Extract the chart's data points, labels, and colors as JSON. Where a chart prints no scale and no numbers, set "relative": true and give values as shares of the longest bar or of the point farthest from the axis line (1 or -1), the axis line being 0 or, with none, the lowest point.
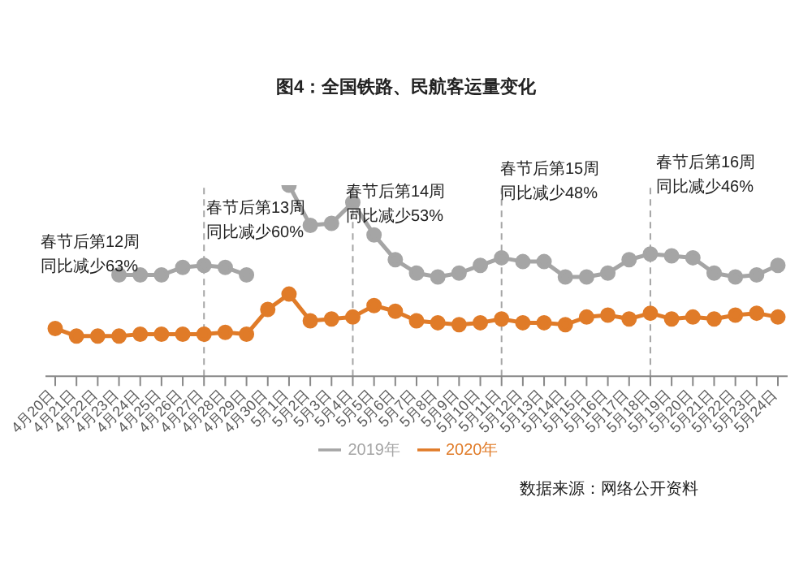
{
  "chart_data": {
    "type": "line",
    "title": "图4：全国铁路、民航客运量变化",
    "relative": true,
    "marker": "circle",
    "line_style": "solid",
    "legend": "bottom",
    "grid": false,
    "categories": [
      "4月20日",
      "4月21日",
      "4月22日",
      "4月23日",
      "4月24日",
      "4月25日",
      "4月26日",
      "4月27日",
      "4月28日",
      "4月29日",
      "4月30日",
      "5月1日",
      "5月2日",
      "5月3日",
      "5月4日",
      "5月5日",
      "5月6日",
      "5月7日",
      "5月8日",
      "5月9日",
      "5月10日",
      "5月11日",
      "5月12日",
      "5月13日",
      "5月14日",
      "5月15日",
      "5月16日",
      "5月17日",
      "5月18日",
      "5月19日",
      "5月20日",
      "5月21日",
      "5月22日",
      "5月23日",
      "5月24日"
    ],
    "series": [
      {
        "name": "2020年",
        "color": "#e07b28",
        "values": [
          0.25,
          0.21,
          0.21,
          0.21,
          0.22,
          0.22,
          0.22,
          0.22,
          0.23,
          0.22,
          0.35,
          0.43,
          0.29,
          0.3,
          0.31,
          0.37,
          0.34,
          0.29,
          0.28,
          0.27,
          0.28,
          0.3,
          0.28,
          0.28,
          0.27,
          0.31,
          0.32,
          0.3,
          0.33,
          0.3,
          0.31,
          0.3,
          0.32,
          0.33,
          0.31
        ]
      },
      {
        "name": "2019年",
        "color": "#a5a5a5",
        "values": [
          null,
          null,
          null,
          0.53,
          0.53,
          0.53,
          0.57,
          0.58,
          0.57,
          0.53,
          null,
          1,
          0.79,
          0.8,
          0.91,
          0.74,
          0.61,
          0.54,
          0.52,
          0.54,
          0.58,
          0.62,
          0.6,
          0.6,
          0.52,
          0.52,
          0.54,
          0.61,
          0.64,
          0.63,
          0.62,
          0.54,
          0.52,
          0.53,
          0.58
        ]
      }
    ],
    "ref_lines": [
      {
        "axis": "x",
        "value": "4月27日",
        "color": "#a5a5a5",
        "line_style": "dashed"
      },
      {
        "axis": "x",
        "value": "5月4日",
        "color": "#a5a5a5",
        "line_style": "dashed"
      },
      {
        "axis": "x",
        "value": "5月11日",
        "color": "#a5a5a5",
        "line_style": "dashed"
      },
      {
        "axis": "x",
        "value": "5月18日",
        "color": "#a5a5a5",
        "line_style": "dashed"
      }
    ],
    "annotations": [
      "春节后第12周",
      "同比减少63%",
      "春节后第13周",
      "同比减少60%",
      "春节后第14周",
      "同比减少53%",
      "春节后第15周",
      "同比减少48%",
      "春节后第16周",
      "同比减少46%",
      "数据来源：网络公开资料"
    ]
  }
}
